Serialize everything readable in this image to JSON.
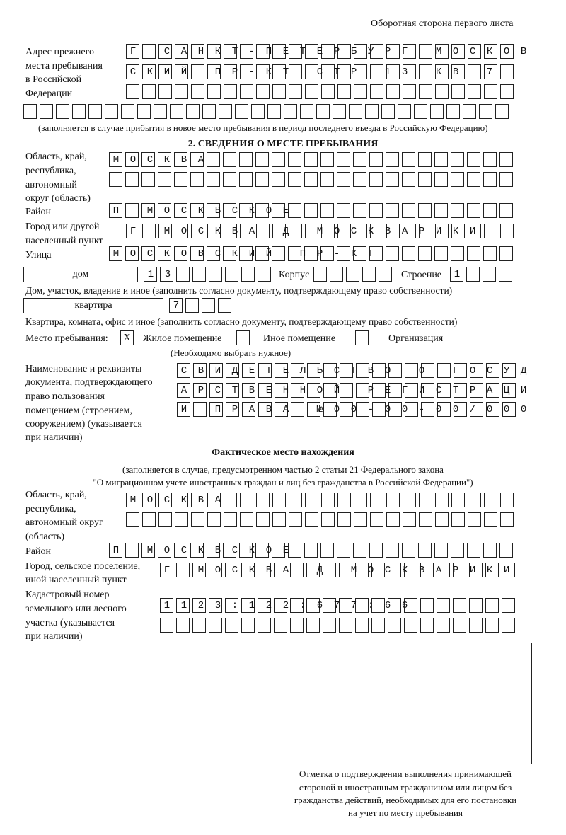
{
  "header": "Оборотная сторона первого листа",
  "prev_address": {
    "label": [
      "Адрес прежнего",
      "места пребывания",
      "в Российской",
      "Федерации"
    ],
    "rows": [
      "Г САНКТ-ПЕТЕРБУРГ МОСКОВ",
      "СКИЙ ПР-КТ СТР 13 КВ 7  ",
      "                        ",
      "                              "
    ],
    "note": "(заполняется в случае прибытия в новое место пребывания в период последнего въезда в Российскую Федерацию)"
  },
  "section2": {
    "title": "2. СВЕДЕНИЯ О МЕСТЕ ПРЕБЫВАНИЯ",
    "region_label": [
      "Область, край,",
      "республика,",
      "автономный",
      "округ (область)"
    ],
    "region_rows": [
      "МОСКВА                   ",
      "                         "
    ],
    "district_label": "Район",
    "district_row": "П МОСКВСКОЕ              ",
    "city_label": [
      "Город или другой",
      "населенный пункт"
    ],
    "city_row": "Г МОСКВА Д МОСКВАРИКИ   ",
    "street_label": "Улица",
    "street_row": "МОСКОВСКИЙ ПР-КТ         ",
    "house_type": "дом",
    "house_row": "13      ",
    "korpus_label": "Корпус",
    "korpus_row": "     ",
    "building_label": "Строение",
    "building_row": "1   ",
    "house_note": "Дом, участок, владение и иное (заполнить согласно документу, подтверждающему право собственности)",
    "flat_type": "квартира",
    "flat_row": "7   ",
    "flat_note": "Квартира, комната, офис и иное (заполнить согласно документу, подтверждающему право собственности)",
    "stay_label": "Место пребывания:",
    "stay_options": [
      {
        "label": "Жилое помещение",
        "mark": "X"
      },
      {
        "label": "Иное помещение",
        "mark": ""
      },
      {
        "label": "Организация",
        "mark": ""
      }
    ],
    "stay_note": "(Необходимо выбрать нужное)",
    "doc_label": [
      "Наименование и реквизиты",
      "документа, подтверждающего",
      "право пользования",
      "помещением (строением,",
      "сооружением) (указывается",
      "при наличии)"
    ],
    "doc_rows": [
      "СВИДЕТЕЛЬСТВО О ГОСУД",
      "АРСТВЕННОЙ РЕГИСТРАЦИ",
      "И ПРАВА №00-00-00/000"
    ]
  },
  "actual": {
    "title": "Фактическое место нахождения",
    "note": [
      "(заполняется в случае, предусмотренном частью 2 статьи 21 Федерального закона",
      "\"О миграционном учете иностранных граждан и лиц без гражданства в Российской Федерации\")"
    ],
    "region_label": [
      "Область, край,",
      "республика,",
      "автономный округ",
      "(область)"
    ],
    "region_rows": [
      "МОСКВА                  ",
      "                        "
    ],
    "district_label": "Район",
    "district_row": "П МОСКВСКОЕ              ",
    "city_label": [
      "Город, сельское поселение,",
      "иной населенный пункт"
    ],
    "city_row": "Г МОСКВА Д МОСКВАРИКИ ",
    "cadastre_label": [
      "Кадастровый номер",
      "земельного или лесного",
      "участка (указывается",
      "при наличии)"
    ],
    "cadastre_rows": [
      "1123:122:677:66       ",
      "                      "
    ]
  },
  "stamp_caption": [
    "Отметка о подтверждении выполнения принимающей",
    "стороной и иностранным гражданином или лицом без",
    "гражданства действий, необходимых для его постановки",
    "на учет по месту пребывания"
  ]
}
